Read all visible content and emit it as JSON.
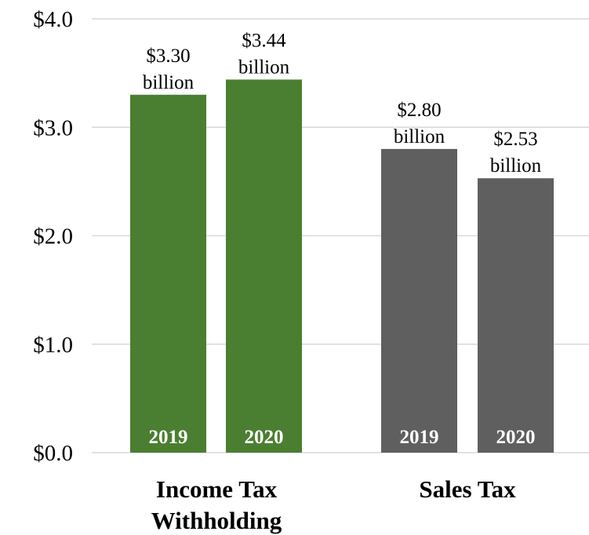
{
  "chart_data": {
    "type": "bar",
    "ylim": [
      0,
      4
    ],
    "y_ticks": [
      "$0.0",
      "$1.0",
      "$2.0",
      "$3.0",
      "$4.0"
    ],
    "grid": true,
    "categories": [
      {
        "label_lines": [
          "Income Tax",
          "Withholding"
        ],
        "color": "#4a7f31",
        "bars": [
          {
            "year": "2019",
            "value": 3.3,
            "label_lines": [
              "$3.30",
              "billion"
            ]
          },
          {
            "year": "2020",
            "value": 3.44,
            "label_lines": [
              "$3.44",
              "billion"
            ]
          }
        ]
      },
      {
        "label_lines": [
          "Sales Tax"
        ],
        "color": "#5f5f5f",
        "bars": [
          {
            "year": "2019",
            "value": 2.8,
            "label_lines": [
              "$2.80",
              "billion"
            ]
          },
          {
            "year": "2020",
            "value": 2.53,
            "label_lines": [
              "$2.53",
              "billion"
            ]
          }
        ]
      }
    ]
  }
}
